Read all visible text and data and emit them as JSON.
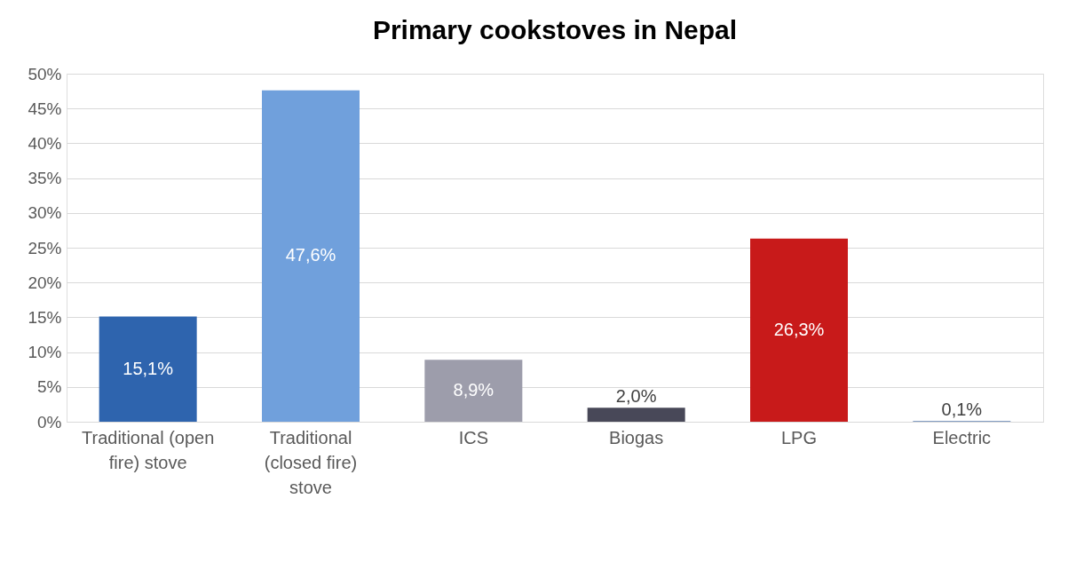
{
  "chart_data": {
    "type": "bar",
    "title": "Primary cookstoves in Nepal",
    "categories": [
      "Traditional (open fire) stove",
      "Traditional (closed fire) stove",
      "ICS",
      "Biogas",
      "LPG",
      "Electric"
    ],
    "values": [
      15.1,
      47.6,
      8.9,
      2.0,
      26.3,
      0.1
    ],
    "colors": [
      "#2e64ae",
      "#70a0dc",
      "#9d9dab",
      "#484858",
      "#c81a1a",
      "#5b7fb0"
    ],
    "value_labels": [
      "15,1%",
      "47,6%",
      "8,9%",
      "2,0%",
      "26,3%",
      "0,1%"
    ],
    "ylim": [
      0,
      50
    ],
    "yticks": [
      {
        "value": 0,
        "label": "0%"
      },
      {
        "value": 5,
        "label": "5%"
      },
      {
        "value": 10,
        "label": "10%"
      },
      {
        "value": 15,
        "label": "15%"
      },
      {
        "value": 20,
        "label": "20%"
      },
      {
        "value": 25,
        "label": "25%"
      },
      {
        "value": 30,
        "label": "30%"
      },
      {
        "value": 35,
        "label": "35%"
      },
      {
        "value": 40,
        "label": "40%"
      },
      {
        "value": 45,
        "label": "45%"
      },
      {
        "value": 50,
        "label": "50%"
      }
    ],
    "grid": "y"
  }
}
